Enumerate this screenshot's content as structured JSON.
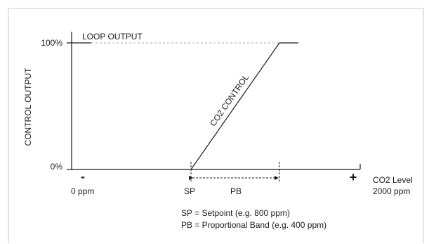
{
  "y_axis": {
    "title": "CONTROL OUTPUT",
    "tick_top": "100%",
    "tick_bottom": "0%"
  },
  "x_axis": {
    "minus_symbol": "-",
    "plus_symbol": "+",
    "min_label": "0 ppm",
    "max_label_line1": "CO2 Level",
    "max_label_line2": "2000 ppm",
    "sp_label": "SP",
    "pb_label": "PB"
  },
  "curve_labels": {
    "loop_output": "LOOP OUTPUT",
    "co2_control": "CO2 CONTROL"
  },
  "legend": {
    "line1": "SP = Setpoint (e.g. 800 ppm)",
    "line2": "PB = Proportional Band (e.g. 400 ppm)"
  },
  "colors": {
    "line": "#1a1a1a",
    "dashed_guide": "#aaaaaa",
    "frame": "#c8c8c8"
  }
}
